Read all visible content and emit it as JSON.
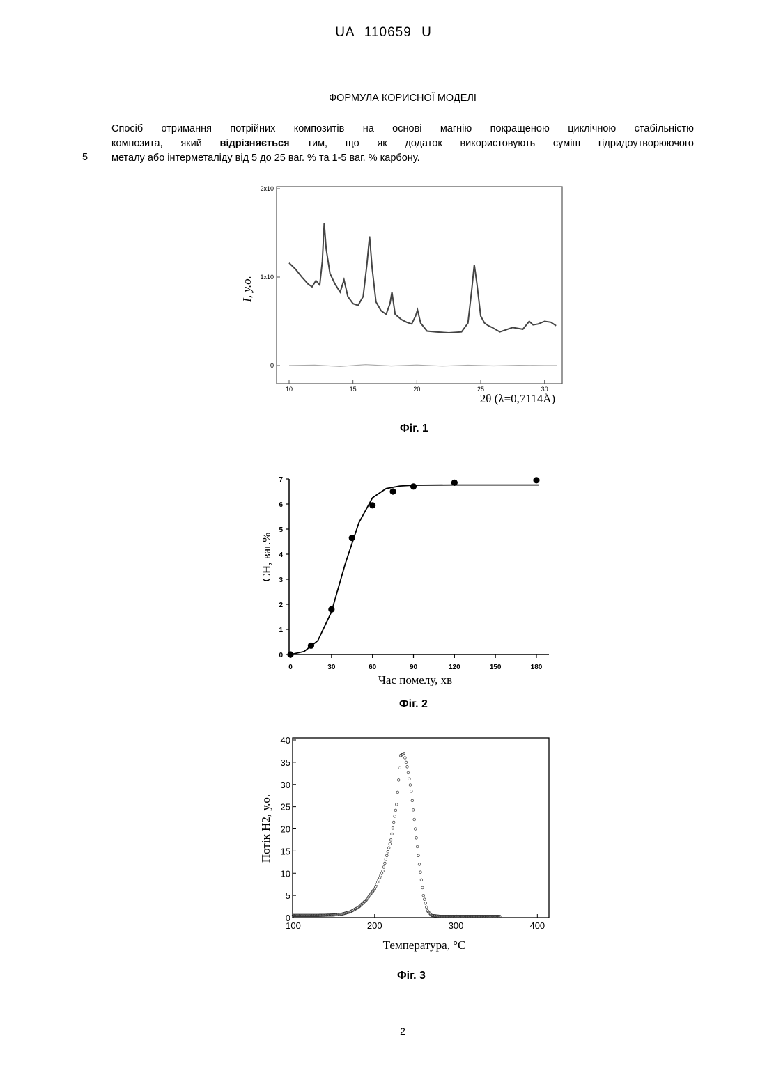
{
  "document": {
    "header": "UA   110659   U",
    "section_title": "ФОРМУЛА КОРИСНОЇ МОДЕЛІ",
    "claim": {
      "line1": "Спосіб отримання потрійних композитів на основі магнію покращеною циклічною стабільністю",
      "line2_pre": "композита, який ",
      "line2_bold": "відрізняється",
      "line2_post": " тим, що як додаток використовують суміш гідридоутворюючого",
      "line3": "металу або інтерметаліду від 5 до 25 ваг. % та 1-5 ваг. % карбону."
    },
    "line_number": "5",
    "page_number": "2"
  },
  "figures": [
    {
      "caption": "Фіг. 1"
    },
    {
      "caption": "Фіг. 2"
    },
    {
      "caption": "Фіг. 3"
    }
  ],
  "chart_data": [
    {
      "type": "line",
      "xlabel": "2θ (λ=0,7114Å)",
      "ylabel": "I, у.о.",
      "xlim": [
        10,
        31
      ],
      "ylim": [
        0,
        20000
      ],
      "x_ticks": [
        "10",
        "15",
        "20",
        "25",
        "30"
      ],
      "y_ticks": [
        "0",
        "1x10",
        "2x10"
      ],
      "series": [
        {
          "x": [
            10,
            10.5,
            11,
            11.5,
            11.8,
            12.1,
            12.4,
            12.6,
            12.75,
            12.9,
            13.2,
            13.6,
            14.0,
            14.3,
            14.6,
            15.0,
            15.4,
            15.8,
            16.1,
            16.3,
            16.5,
            16.8,
            17.2,
            17.6,
            17.9,
            18.05,
            18.3,
            18.8,
            19.2,
            19.6,
            19.9,
            20.05,
            20.3,
            20.8,
            21.5,
            22.5,
            23.5,
            24.0,
            24.3,
            24.5,
            24.7,
            25.0,
            25.3,
            25.6,
            25.9,
            26.5,
            27.5,
            28.3,
            28.8,
            29.1,
            29.5,
            30.0,
            30.5,
            30.9
          ],
          "y": [
            11600,
            10900,
            10000,
            9200,
            8900,
            9600,
            9100,
            11800,
            16100,
            13200,
            10400,
            9200,
            8300,
            9700,
            7800,
            7000,
            6800,
            7800,
            11500,
            14600,
            11000,
            7200,
            6200,
            5800,
            7000,
            8300,
            5800,
            5200,
            4900,
            4700,
            5600,
            6300,
            4800,
            3900,
            3800,
            3700,
            3800,
            4800,
            8600,
            11400,
            9300,
            5600,
            4800,
            4500,
            4300,
            3800,
            4300,
            4100,
            5000,
            4600,
            4700,
            5000,
            4900,
            4500
          ]
        },
        {
          "x": [
            10,
            12,
            14,
            16,
            18,
            20,
            22,
            24,
            26,
            28,
            30,
            31
          ],
          "y": [
            0,
            50,
            -100,
            100,
            -50,
            60,
            -60,
            40,
            -40,
            30,
            0,
            0
          ]
        }
      ]
    },
    {
      "type": "scatter",
      "xlabel": "Час помелу, хв",
      "ylabel": "CH, ваг.%",
      "xlim": [
        0,
        180
      ],
      "ylim": [
        0,
        7
      ],
      "x_ticks": [
        "0",
        "30",
        "60",
        "90",
        "120",
        "150",
        "180"
      ],
      "y_ticks": [
        "0",
        "1",
        "2",
        "3",
        "4",
        "5",
        "6",
        "7"
      ],
      "points": {
        "x": [
          0,
          15,
          30,
          45,
          60,
          75,
          90,
          120,
          180
        ],
        "y": [
          0,
          0.35,
          1.8,
          4.65,
          5.95,
          6.5,
          6.7,
          6.85,
          6.95
        ]
      },
      "fit": {
        "x": [
          0,
          10,
          20,
          30,
          40,
          50,
          60,
          70,
          80,
          90,
          120,
          150,
          180
        ],
        "y": [
          0,
          0.12,
          0.55,
          1.7,
          3.6,
          5.25,
          6.25,
          6.62,
          6.72,
          6.75,
          6.76,
          6.76,
          6.76
        ]
      }
    },
    {
      "type": "scatter",
      "xlabel": "Температура, °C",
      "ylabel": "Потік H2, у.о.",
      "xlim": [
        100,
        410
      ],
      "ylim": [
        0,
        40
      ],
      "x_ticks": [
        "100",
        "200",
        "300",
        "400"
      ],
      "y_ticks": [
        "0",
        "5",
        "10",
        "15",
        "20",
        "25",
        "30",
        "35",
        "40"
      ],
      "series": [
        {
          "x": [
            100,
            130,
            150,
            160,
            170,
            180,
            190,
            200,
            210,
            220,
            227,
            232,
            236,
            240,
            245,
            250,
            255,
            260,
            265,
            270,
            280,
            300,
            330,
            355
          ],
          "y": [
            0.5,
            0.5,
            0.6,
            0.8,
            1.3,
            2.3,
            4.0,
            6.5,
            10.5,
            17.5,
            25.5,
            36.5,
            37.0,
            34.0,
            28.5,
            20.0,
            12.0,
            5.0,
            1.5,
            0.5,
            0.3,
            0.3,
            0.3,
            0.3
          ]
        }
      ]
    }
  ]
}
